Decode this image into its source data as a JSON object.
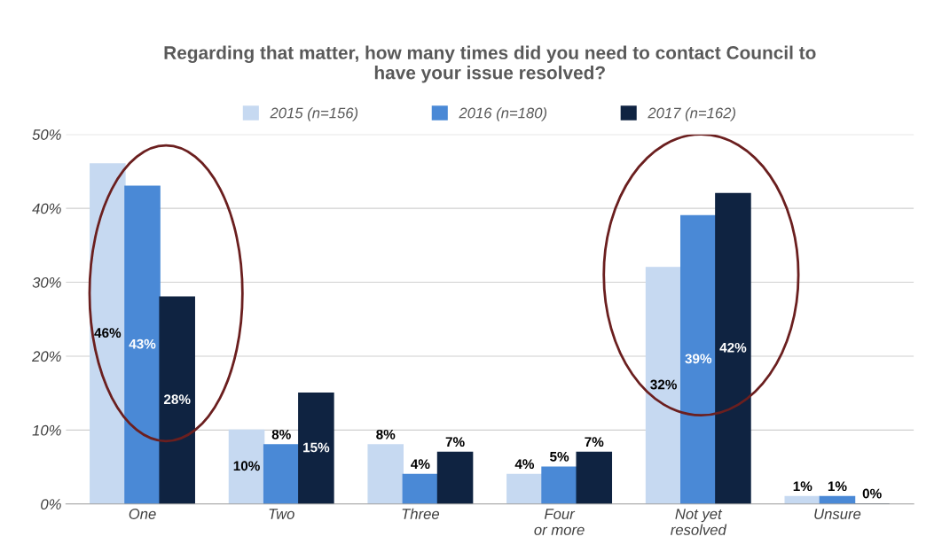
{
  "chart_data": {
    "type": "bar",
    "title": "Regarding that matter, how many times did you need to contact Council to\nhave your issue resolved?",
    "categories": [
      "One",
      "Two",
      "Three",
      "Four\nor more",
      "Not yet\nresolved",
      "Unsure"
    ],
    "series": [
      {
        "name": "2015 (n=156)",
        "color": "#c6d9f1",
        "values": [
          46,
          10,
          8,
          4,
          32,
          1
        ],
        "value_labels": [
          "46%",
          "10%",
          "8%",
          "4%",
          "32%",
          "1%"
        ]
      },
      {
        "name": "2016 (n=180)",
        "color": "#4a89d6",
        "values": [
          43,
          8,
          4,
          5,
          39,
          1
        ],
        "value_labels": [
          "43%",
          "8%",
          "4%",
          "5%",
          "39%",
          "1%"
        ]
      },
      {
        "name": "2017 (n=162)",
        "color": "#0f2341",
        "values": [
          28,
          15,
          7,
          7,
          42,
          0
        ],
        "value_labels": [
          "28%",
          "15%",
          "7%",
          "7%",
          "42%",
          "0%"
        ]
      }
    ],
    "ylim": [
      0,
      50
    ],
    "yticks": [
      {
        "value": 0,
        "label": "0%"
      },
      {
        "value": 10,
        "label": "10%"
      },
      {
        "value": 20,
        "label": "20%"
      },
      {
        "value": 30,
        "label": "30%"
      },
      {
        "value": 40,
        "label": "40%"
      },
      {
        "value": 50,
        "label": "50%"
      }
    ],
    "grid": "y",
    "legend": "top"
  }
}
